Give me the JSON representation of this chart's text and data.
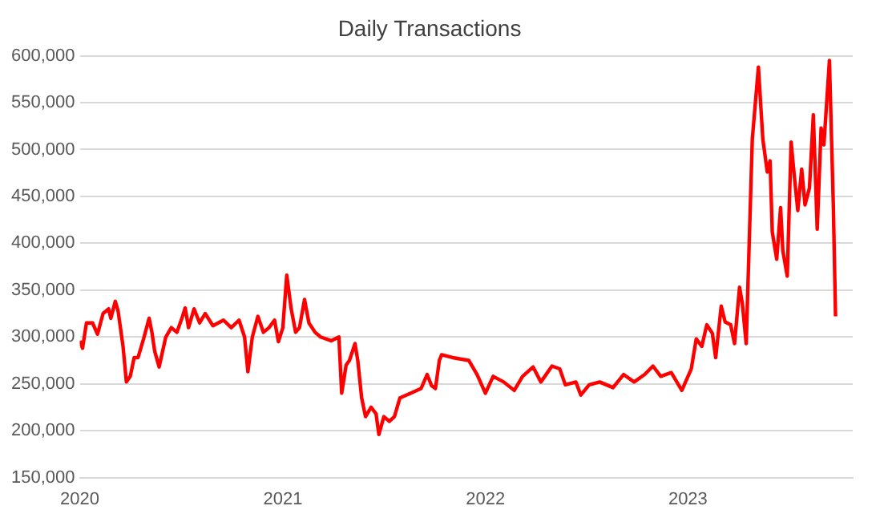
{
  "chart_data": {
    "type": "line",
    "title": "Daily Transactions",
    "x": [
      "2020-01-01",
      "2020-01-06",
      "2020-01-13",
      "2020-01-24",
      "2020-02-02",
      "2020-02-12",
      "2020-02-22",
      "2020-02-26",
      "2020-03-05",
      "2020-03-10",
      "2020-03-19",
      "2020-03-25",
      "2020-04-01",
      "2020-04-08",
      "2020-04-15",
      "2020-04-25",
      "2020-05-05",
      "2020-05-10",
      "2020-05-15",
      "2020-05-23",
      "2020-06-04",
      "2020-06-14",
      "2020-06-24",
      "2020-07-03",
      "2020-07-09",
      "2020-07-15",
      "2020-07-25",
      "2020-08-04",
      "2020-08-14",
      "2020-08-28",
      "2020-09-16",
      "2020-09-30",
      "2020-10-14",
      "2020-10-24",
      "2020-10-30",
      "2020-11-07",
      "2020-11-17",
      "2020-11-27",
      "2020-12-07",
      "2020-12-17",
      "2020-12-24",
      "2021-01-01",
      "2021-01-08",
      "2021-01-16",
      "2021-01-24",
      "2021-01-31",
      "2021-02-09",
      "2021-02-17",
      "2021-02-28",
      "2021-03-10",
      "2021-03-29",
      "2021-04-12",
      "2021-04-17",
      "2021-04-25",
      "2021-05-01",
      "2021-05-11",
      "2021-05-16",
      "2021-05-23",
      "2021-05-30",
      "2021-06-09",
      "2021-06-18",
      "2021-06-23",
      "2021-07-02",
      "2021-07-12",
      "2021-07-21",
      "2021-07-31",
      "2021-08-19",
      "2021-09-07",
      "2021-09-18",
      "2021-09-26",
      "2021-10-03",
      "2021-10-10",
      "2021-10-14",
      "2021-11-03",
      "2021-12-02",
      "2021-12-17",
      "2022-01-01",
      "2022-01-15",
      "2022-02-03",
      "2022-02-22",
      "2022-03-09",
      "2022-03-28",
      "2022-04-11",
      "2022-05-01",
      "2022-05-15",
      "2022-05-25",
      "2022-06-13",
      "2022-06-22",
      "2022-07-07",
      "2022-07-26",
      "2022-08-19",
      "2022-09-07",
      "2022-09-26",
      "2022-10-15",
      "2022-10-30",
      "2022-11-13",
      "2022-12-02",
      "2022-12-21",
      "2023-01-07",
      "2023-01-16",
      "2023-01-26",
      "2023-02-04",
      "2023-02-14",
      "2023-02-20",
      "2023-03-02",
      "2023-03-09",
      "2023-03-19",
      "2023-03-26",
      "2023-04-04",
      "2023-04-09",
      "2023-04-16",
      "2023-04-27",
      "2023-05-08",
      "2023-05-16",
      "2023-05-24",
      "2023-05-29",
      "2023-06-02",
      "2023-06-10",
      "2023-06-17",
      "2023-06-21",
      "2023-06-29",
      "2023-07-06",
      "2023-07-10",
      "2023-07-18",
      "2023-07-25",
      "2023-07-31",
      "2023-08-08",
      "2023-08-15",
      "2023-08-22",
      "2023-08-29",
      "2023-09-03",
      "2023-09-13",
      "2023-09-20",
      "2023-09-24"
    ],
    "series": [
      {
        "color": "#ff0000",
        "values": [
          296000,
          288000,
          315000,
          315000,
          303000,
          325000,
          330000,
          320000,
          338000,
          328000,
          290000,
          252000,
          258000,
          278000,
          278000,
          298000,
          320000,
          305000,
          285000,
          268000,
          300000,
          310000,
          305000,
          320000,
          331000,
          310000,
          330000,
          315000,
          325000,
          312000,
          318000,
          310000,
          318000,
          300000,
          263000,
          300000,
          322000,
          305000,
          310000,
          318000,
          295000,
          310000,
          366000,
          330000,
          305000,
          310000,
          340000,
          315000,
          305000,
          300000,
          296000,
          300000,
          240000,
          270000,
          275000,
          293000,
          275000,
          235000,
          215000,
          225000,
          218000,
          196000,
          215000,
          210000,
          215000,
          235000,
          240000,
          245000,
          260000,
          248000,
          245000,
          275000,
          281000,
          278000,
          275000,
          260000,
          240000,
          258000,
          252000,
          243000,
          258000,
          268000,
          252000,
          269000,
          266000,
          249000,
          252000,
          238000,
          249000,
          252000,
          246000,
          260000,
          252000,
          260000,
          269000,
          258000,
          262000,
          243000,
          266000,
          298000,
          290000,
          313000,
          304000,
          278000,
          333000,
          316000,
          313000,
          293000,
          353000,
          336000,
          293000,
          511000,
          588000,
          511000,
          476000,
          488000,
          412000,
          383000,
          438000,
          392000,
          365000,
          508000,
          482000,
          435000,
          479000,
          441000,
          459000,
          537000,
          415000,
          523000,
          505000,
          595000,
          441000,
          322000
        ]
      }
    ],
    "xlim": [
      "2020-01-01",
      "2023-10-25"
    ],
    "xticks": [
      "2020",
      "2021",
      "2022",
      "2023"
    ],
    "ylim": [
      150000,
      600000
    ],
    "yticks": [
      {
        "value": 150000,
        "label": "150,000"
      },
      {
        "value": 200000,
        "label": "200,000"
      },
      {
        "value": 250000,
        "label": "250,000"
      },
      {
        "value": 300000,
        "label": "300,000"
      },
      {
        "value": 350000,
        "label": "350,000"
      },
      {
        "value": 400000,
        "label": "400,000"
      },
      {
        "value": 450000,
        "label": "450,000"
      },
      {
        "value": 500000,
        "label": "500,000"
      },
      {
        "value": 550000,
        "label": "550,000"
      },
      {
        "value": 600000,
        "label": "600,000"
      }
    ],
    "grid": "y",
    "legend": false,
    "marker": "none",
    "line_style": "solid"
  }
}
